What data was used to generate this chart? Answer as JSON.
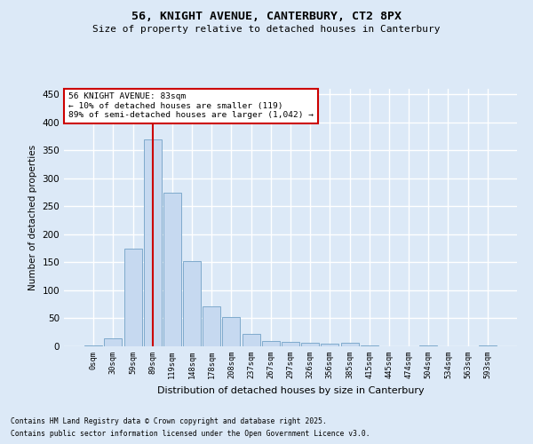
{
  "title1": "56, KNIGHT AVENUE, CANTERBURY, CT2 8PX",
  "title2": "Size of property relative to detached houses in Canterbury",
  "xlabel": "Distribution of detached houses by size in Canterbury",
  "ylabel": "Number of detached properties",
  "footnote1": "Contains HM Land Registry data © Crown copyright and database right 2025.",
  "footnote2": "Contains public sector information licensed under the Open Government Licence v3.0.",
  "annotation_line1": "56 KNIGHT AVENUE: 83sqm",
  "annotation_line2": "← 10% of detached houses are smaller (119)",
  "annotation_line3": "89% of semi-detached houses are larger (1,042) →",
  "bar_values": [
    2,
    15,
    175,
    370,
    275,
    152,
    72,
    53,
    23,
    9,
    8,
    6,
    5,
    7,
    1,
    0,
    0,
    2,
    0,
    0,
    1
  ],
  "tick_labels": [
    "0sqm",
    "30sqm",
    "59sqm",
    "89sqm",
    "119sqm",
    "148sqm",
    "178sqm",
    "208sqm",
    "237sqm",
    "267sqm",
    "297sqm",
    "326sqm",
    "356sqm",
    "385sqm",
    "415sqm",
    "445sqm",
    "474sqm",
    "504sqm",
    "534sqm",
    "563sqm",
    "593sqm"
  ],
  "bar_color": "#c6d9f0",
  "bar_edge_color": "#7faacc",
  "vline_x": 3,
  "vline_color": "#cc0000",
  "annotation_box_color": "#cc0000",
  "annotation_text_color": "#000000",
  "background_color": "#dce9f7",
  "grid_color": "#ffffff",
  "ylim": [
    0,
    460
  ],
  "yticks": [
    0,
    50,
    100,
    150,
    200,
    250,
    300,
    350,
    400,
    450
  ]
}
